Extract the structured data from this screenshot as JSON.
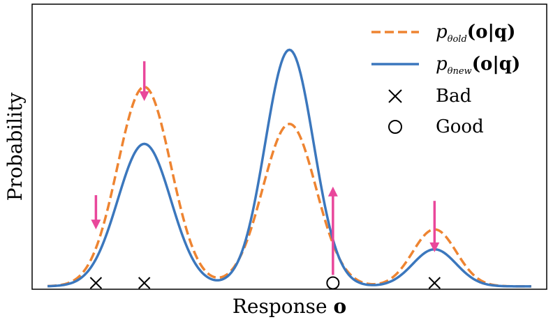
{
  "chart_data": {
    "type": "line",
    "xlabel": "Response o",
    "ylabel": "Probability",
    "xlim": [
      0,
      10
    ],
    "ylim": [
      0,
      1.0
    ],
    "grid": false,
    "ticks_shown": false,
    "legend_position": "top-right",
    "colors": {
      "old": "#ee8431",
      "new": "#3b77bd",
      "arrow": "#e9479b",
      "marker": "#000000"
    },
    "series": [
      {
        "name": "p_θold(o|q)",
        "legend_main": "p",
        "legend_sub": "θold",
        "legend_tail": "(o|q)",
        "style": "dashed",
        "color": "#ee8431",
        "peaks": [
          {
            "center": 2.0,
            "amplitude": 0.7,
            "width": 0.55
          },
          {
            "center": 5.0,
            "amplitude": 0.57,
            "width": 0.55
          },
          {
            "center": 8.0,
            "amplitude": 0.2,
            "width": 0.45
          }
        ]
      },
      {
        "name": "p_θnew(o|q)",
        "legend_main": "p",
        "legend_sub": "θnew",
        "legend_tail": "(o|q)",
        "style": "solid",
        "color": "#3b77bd",
        "peaks": [
          {
            "center": 2.0,
            "amplitude": 0.5,
            "width": 0.55
          },
          {
            "center": 5.0,
            "amplitude": 0.83,
            "width": 0.5
          },
          {
            "center": 8.0,
            "amplitude": 0.13,
            "width": 0.45
          }
        ]
      }
    ],
    "markers": [
      {
        "x": 1.0,
        "type": "bad"
      },
      {
        "x": 2.0,
        "type": "bad"
      },
      {
        "x": 5.9,
        "type": "good"
      },
      {
        "x": 8.0,
        "type": "bad"
      }
    ],
    "arrows": [
      {
        "x": 1.0,
        "y_from": 0.33,
        "y_to": 0.21,
        "direction": "down"
      },
      {
        "x": 2.0,
        "y_from": 0.8,
        "y_to": 0.66,
        "direction": "down"
      },
      {
        "x": 5.9,
        "y_from": 0.05,
        "y_to": 0.36,
        "direction": "up"
      },
      {
        "x": 8.0,
        "y_from": 0.31,
        "y_to": 0.13,
        "direction": "down"
      }
    ],
    "legend": [
      {
        "kind": "line-dashed",
        "series": 0
      },
      {
        "kind": "line-solid",
        "series": 1
      },
      {
        "kind": "marker-x",
        "label": "Bad"
      },
      {
        "kind": "marker-o",
        "label": "Good"
      }
    ]
  }
}
